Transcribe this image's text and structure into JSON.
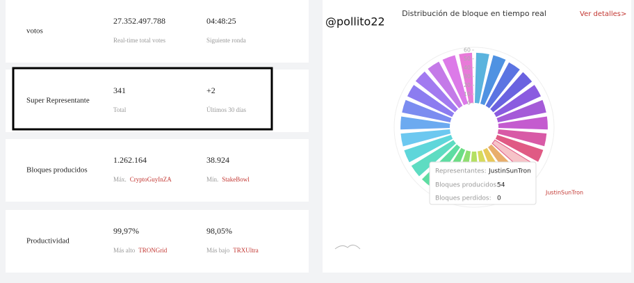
{
  "panels": [
    {
      "label": "votos",
      "items": [
        {
          "value": "27.352.497.788",
          "caption": "Real-time total votes"
        },
        {
          "value": "04:48:25",
          "caption": "Siguiente ronda"
        }
      ]
    },
    {
      "label": "Super Representante",
      "items": [
        {
          "value": "341",
          "caption": "Total"
        },
        {
          "value": "+2",
          "caption": "Últimos 30 días"
        }
      ]
    },
    {
      "label": "Bloques producidos",
      "items": [
        {
          "value": "1.262.164",
          "caption": "Máx.",
          "link": "CryptoGuyInZA"
        },
        {
          "value": "38.924",
          "caption": "Mín.",
          "link": "StakeBowl"
        }
      ]
    },
    {
      "label": "Productividad",
      "items": [
        {
          "value": "99,97%",
          "caption": "Más alto",
          "link": "TRONGrid"
        },
        {
          "value": "98,05%",
          "caption": "Más bajo",
          "link": "TRXUltra"
        }
      ]
    }
  ],
  "user": "@pollito22",
  "chart_data": {
    "type": "polar-bar",
    "title": "Distribución de bloque en tiempo real",
    "link": "Ver detalles>",
    "categories": [
      null,
      null,
      null,
      null,
      null,
      null,
      null,
      null,
      null,
      "JustinSunTron",
      null,
      null,
      null,
      null,
      null,
      null,
      null,
      null,
      null,
      null,
      null,
      null,
      null,
      null,
      null,
      null,
      null
    ],
    "values": [
      57,
      57,
      56,
      56,
      56,
      56,
      56,
      55,
      55,
      54,
      55,
      55,
      55,
      55,
      55,
      55,
      56,
      56,
      56,
      56,
      56,
      56,
      56,
      57,
      57,
      57,
      57
    ],
    "colors": [
      "#5ab3de",
      "#4f92e2",
      "#5b74e2",
      "#6a62e0",
      "#8a5be0",
      "#a55bd8",
      "#c45bcf",
      "#d85aa6",
      "#e05a84",
      "#f6c3c8",
      "#e8ae6c",
      "#e8c95a",
      "#d6da5c",
      "#b4e062",
      "#8ede70",
      "#6cdd84",
      "#5edda2",
      "#5edcc2",
      "#5ed6da",
      "#6cc8f0",
      "#6caaf0",
      "#7b8cf0",
      "#8c7cf0",
      "#a27af0",
      "#c47ae8",
      "#dc7ae8",
      "#e87ad8"
    ],
    "ylim": [
      0,
      60
    ],
    "yticks": [
      0,
      10,
      20,
      30,
      40,
      50,
      60
    ],
    "tooltip": {
      "labels": [
        "Representantes:",
        "Bloques producidos:",
        "Bloques perdidos:"
      ],
      "missed": 0
    }
  }
}
